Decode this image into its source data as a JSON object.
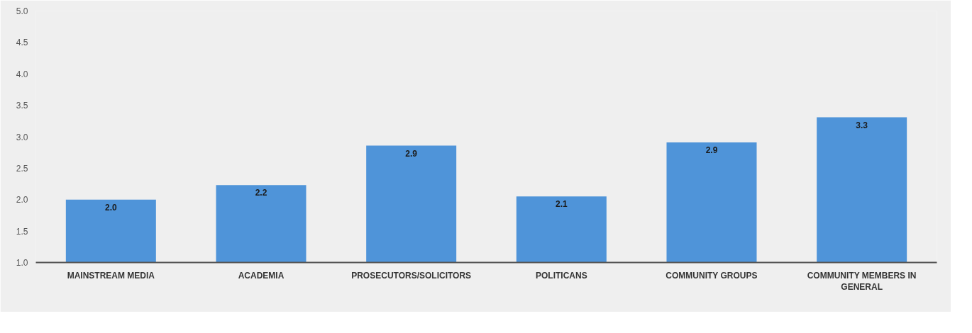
{
  "chart_data": {
    "type": "bar",
    "categories": [
      "MAINSTREAM MEDIA",
      "ACADEMIA",
      "PROSECUTORS/SOLICITORS",
      "POLITICANS",
      "COMMUNITY GROUPS",
      "COMMUNITY MEMBERS IN GENERAL"
    ],
    "values": [
      2.0,
      2.23,
      2.86,
      2.05,
      2.91,
      3.31
    ],
    "value_labels": [
      "2.0",
      "2.2",
      "2.9",
      "2.1",
      "2.9",
      "3.3"
    ],
    "color": "#4f94d9",
    "ylim": [
      1.0,
      5.0
    ],
    "yticks": [
      {
        "value": 1.0,
        "label": "1.0"
      },
      {
        "value": 1.5,
        "label": "1.5"
      },
      {
        "value": 2.0,
        "label": "2.0"
      },
      {
        "value": 2.5,
        "label": "2.5"
      },
      {
        "value": 3.0,
        "label": "3.0"
      },
      {
        "value": 3.5,
        "label": "3.5"
      },
      {
        "value": 4.0,
        "label": "4.0"
      },
      {
        "value": 4.5,
        "label": "4.5"
      },
      {
        "value": 5.0,
        "label": "5.0"
      }
    ],
    "grid": false
  }
}
